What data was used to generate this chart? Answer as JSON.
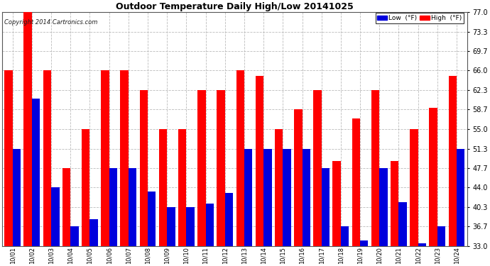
{
  "title": "Outdoor Temperature Daily High/Low 20141025",
  "copyright": "Copyright 2014 Cartronics.com",
  "legend_low": "Low  (°F)",
  "legend_high": "High  (°F)",
  "low_color": "#0000dd",
  "high_color": "#ff0000",
  "bg_color": "#ffffff",
  "grid_color": "#bbbbbb",
  "ymin": 33.0,
  "ymax": 77.0,
  "yticks": [
    33.0,
    36.7,
    40.3,
    44.0,
    47.7,
    51.3,
    55.0,
    58.7,
    62.3,
    66.0,
    69.7,
    73.3,
    77.0
  ],
  "categories": [
    "10/01",
    "10/02",
    "10/03",
    "10/04",
    "10/05",
    "10/06",
    "10/07",
    "10/08",
    "10/09",
    "10/10",
    "10/11",
    "10/12",
    "10/13",
    "10/14",
    "10/15",
    "10/16",
    "10/17",
    "10/18",
    "10/19",
    "10/20",
    "10/21",
    "10/22",
    "10/23",
    "10/24"
  ],
  "high_values": [
    66.0,
    77.0,
    66.0,
    47.7,
    55.0,
    66.0,
    66.0,
    62.3,
    55.0,
    55.0,
    62.3,
    62.3,
    66.0,
    65.0,
    55.0,
    58.7,
    62.3,
    49.0,
    57.0,
    62.3,
    49.0,
    55.0,
    59.0,
    65.0
  ],
  "low_values": [
    51.3,
    60.7,
    44.0,
    36.7,
    38.0,
    47.7,
    47.7,
    43.3,
    40.3,
    40.3,
    41.0,
    43.0,
    51.3,
    51.3,
    51.3,
    51.3,
    47.7,
    36.7,
    34.0,
    47.7,
    41.3,
    33.5,
    36.7,
    51.3
  ]
}
